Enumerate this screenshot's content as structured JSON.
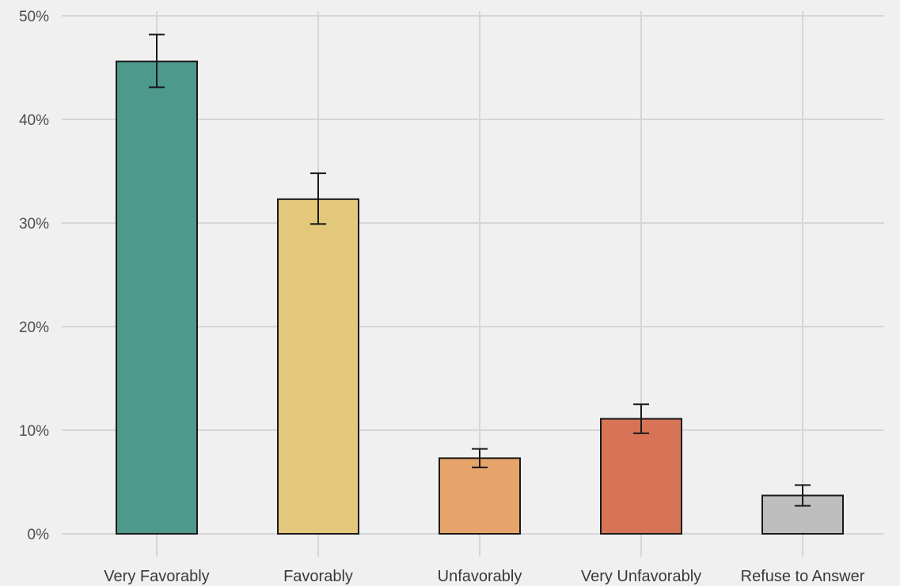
{
  "chart_data": {
    "type": "bar",
    "title": "",
    "xlabel": "",
    "ylabel": "",
    "categories": [
      "Very Favorably",
      "Favorably",
      "Unfavorably",
      "Very Unfavorably",
      "Refuse to Answer"
    ],
    "values": [
      45.6,
      32.3,
      7.3,
      11.1,
      3.7
    ],
    "error_low": [
      43.1,
      29.9,
      6.4,
      9.7,
      2.7
    ],
    "error_high": [
      48.2,
      34.8,
      8.2,
      12.5,
      4.7
    ],
    "colors": [
      "#4d998c",
      "#e3c77a",
      "#e6a46a",
      "#d77356",
      "#bebebe"
    ],
    "ylim": [
      0,
      50
    ],
    "yticks": [
      0,
      10,
      20,
      30,
      40,
      50
    ],
    "ytick_labels": [
      "0%",
      "10%",
      "20%",
      "30%",
      "40%",
      "50%"
    ],
    "grid": true,
    "legend": "none"
  }
}
